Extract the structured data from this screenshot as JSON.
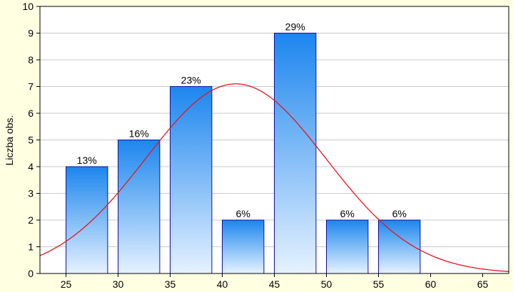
{
  "chart_data": {
    "type": "bar",
    "title": "",
    "xlabel": "",
    "ylabel": "Liczba obs.",
    "xlim": [
      22.5,
      67.5
    ],
    "ylim": [
      0,
      10
    ],
    "grid": true,
    "bins": [
      {
        "x0": 25,
        "x1": 29,
        "value": 4,
        "label": "13%"
      },
      {
        "x0": 30,
        "x1": 34,
        "value": 5,
        "label": "16%"
      },
      {
        "x0": 35,
        "x1": 39,
        "value": 7,
        "label": "23%"
      },
      {
        "x0": 40,
        "x1": 44,
        "value": 2,
        "label": "6%"
      },
      {
        "x0": 45,
        "x1": 49,
        "value": 9,
        "label": "29%"
      },
      {
        "x0": 50,
        "x1": 54,
        "value": 2,
        "label": "6%"
      },
      {
        "x0": 55,
        "x1": 59,
        "value": 2,
        "label": "6%"
      }
    ],
    "x_ticks": [
      "25",
      "30",
      "35",
      "40",
      "45",
      "50",
      "55",
      "60",
      "65"
    ],
    "y_ticks": [
      "0",
      "1",
      "2",
      "3",
      "4",
      "5",
      "6",
      "7",
      "8",
      "9",
      "10"
    ],
    "normal_curve": {
      "mean": 41.3,
      "sd": 8.65,
      "peak": 7.1,
      "color": "#e8141e"
    },
    "colors": {
      "background": "#ffffe2",
      "plot_background": "#ffffff",
      "gridline": "#c8c8c8",
      "bar_top": "#1c86ee",
      "bar_bottom": "#e6f2ff",
      "bar_stroke": "#1010a0"
    }
  }
}
